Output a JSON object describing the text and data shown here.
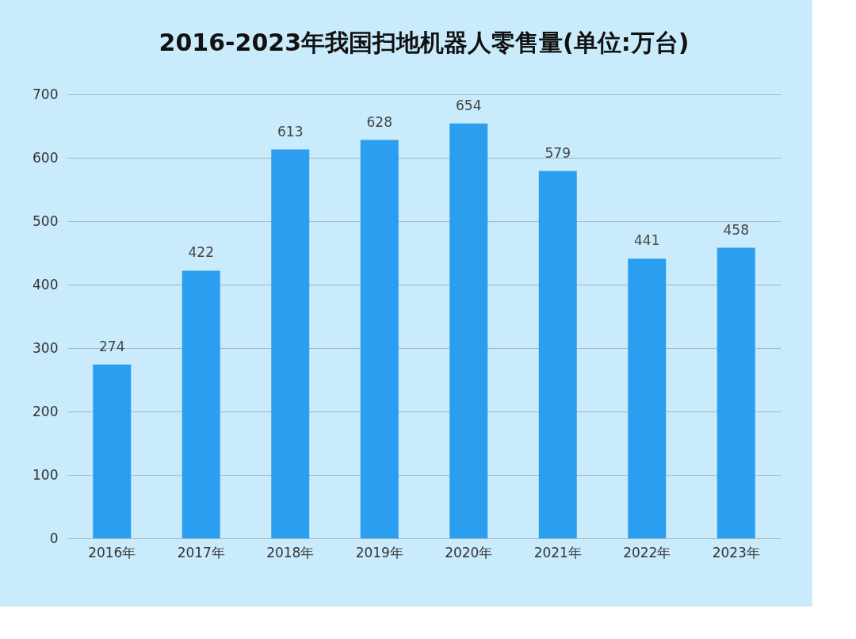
{
  "chart_data": {
    "type": "bar",
    "title": "2016-2023年我国扫地机器人零售量(单位:万台)",
    "categories": [
      "2016年",
      "2017年",
      "2018年",
      "2019年",
      "2020年",
      "2021年",
      "2022年",
      "2023年"
    ],
    "values": [
      274,
      422,
      613,
      628,
      654,
      579,
      441,
      458
    ],
    "color": "#2b9ef0",
    "ylim": [
      0,
      700
    ],
    "yticks": [
      0,
      100,
      200,
      300,
      400,
      500,
      600,
      700
    ],
    "grid": "y",
    "data_labels": true
  }
}
